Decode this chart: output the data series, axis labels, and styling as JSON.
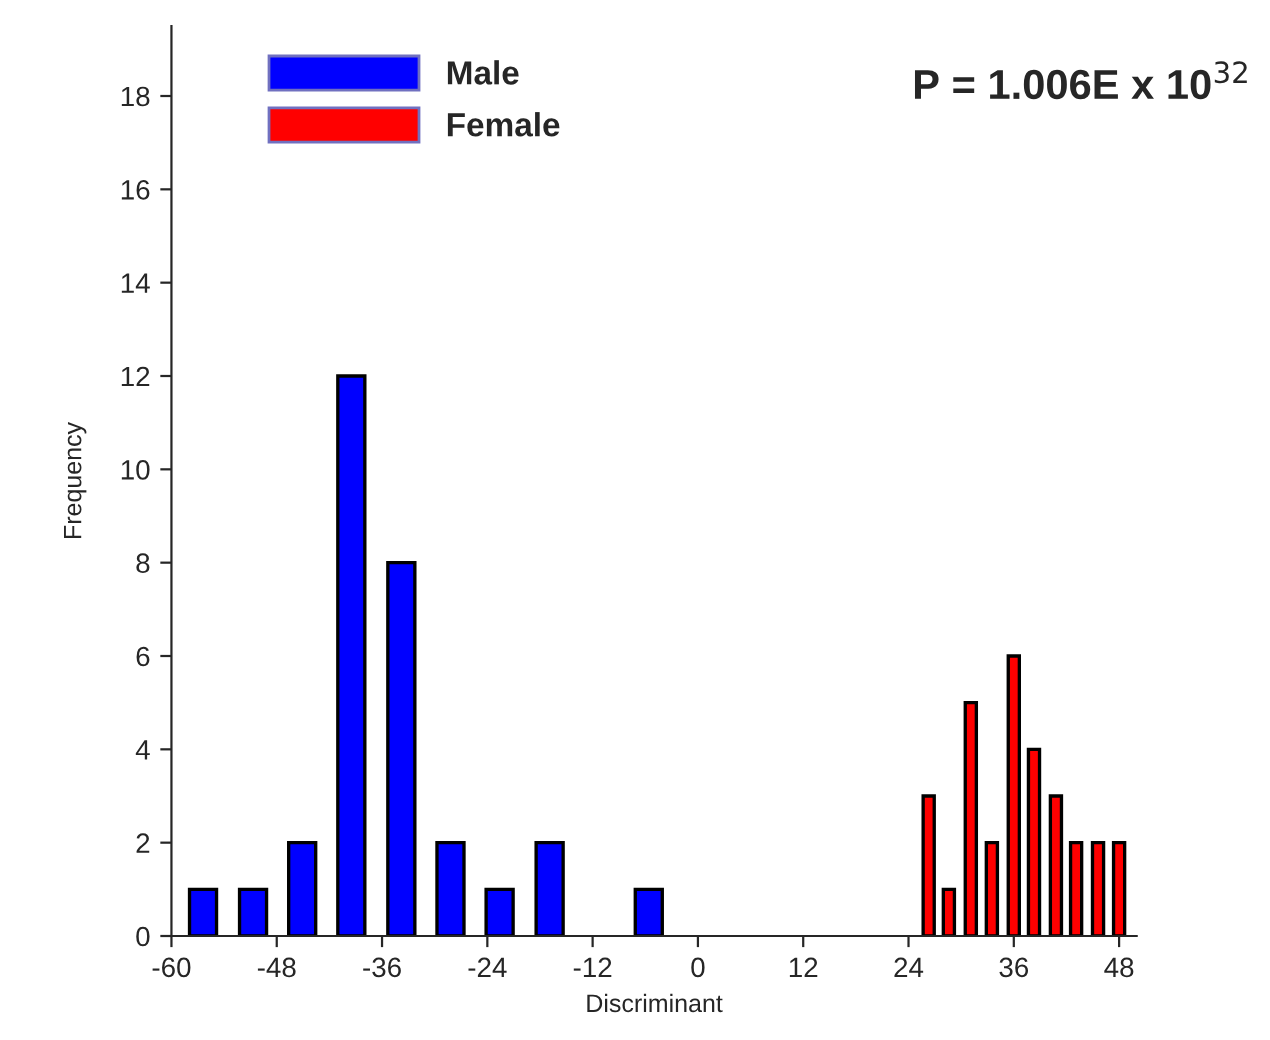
{
  "chart_data": {
    "type": "bar",
    "xlabel": "Discriminant",
    "ylabel": "Frequency",
    "annotations": [
      "P = 1.006E x 10$^{32}$"
    ],
    "series": [
      {
        "name": "Male",
        "color": "#0000ff",
        "x": [
          -56.4,
          -50.7,
          -45.1,
          -39.5,
          -33.8,
          -28.2,
          -22.6,
          -16.9,
          -5.6
        ],
        "values": [
          1,
          1,
          2,
          12,
          8,
          2,
          1,
          2,
          1
        ]
      },
      {
        "name": "Female",
        "color": "#ff0000",
        "x": [
          26.3,
          28.6,
          31.1,
          33.5,
          36,
          38.3,
          40.8,
          43.1,
          45.6,
          48
        ],
        "values": [
          3,
          1,
          5,
          2,
          6,
          4,
          3,
          2,
          2,
          2
        ]
      }
    ],
    "xlim": [
      -60,
      50
    ],
    "xticks": [
      -60,
      -48,
      -36,
      -24,
      -12,
      0,
      12,
      24,
      36,
      48
    ],
    "ylim": [
      0,
      19.5
    ],
    "yticks": [
      0,
      2,
      4,
      6,
      8,
      10,
      12,
      14,
      16,
      18
    ],
    "grid": false,
    "legend": "top left"
  }
}
